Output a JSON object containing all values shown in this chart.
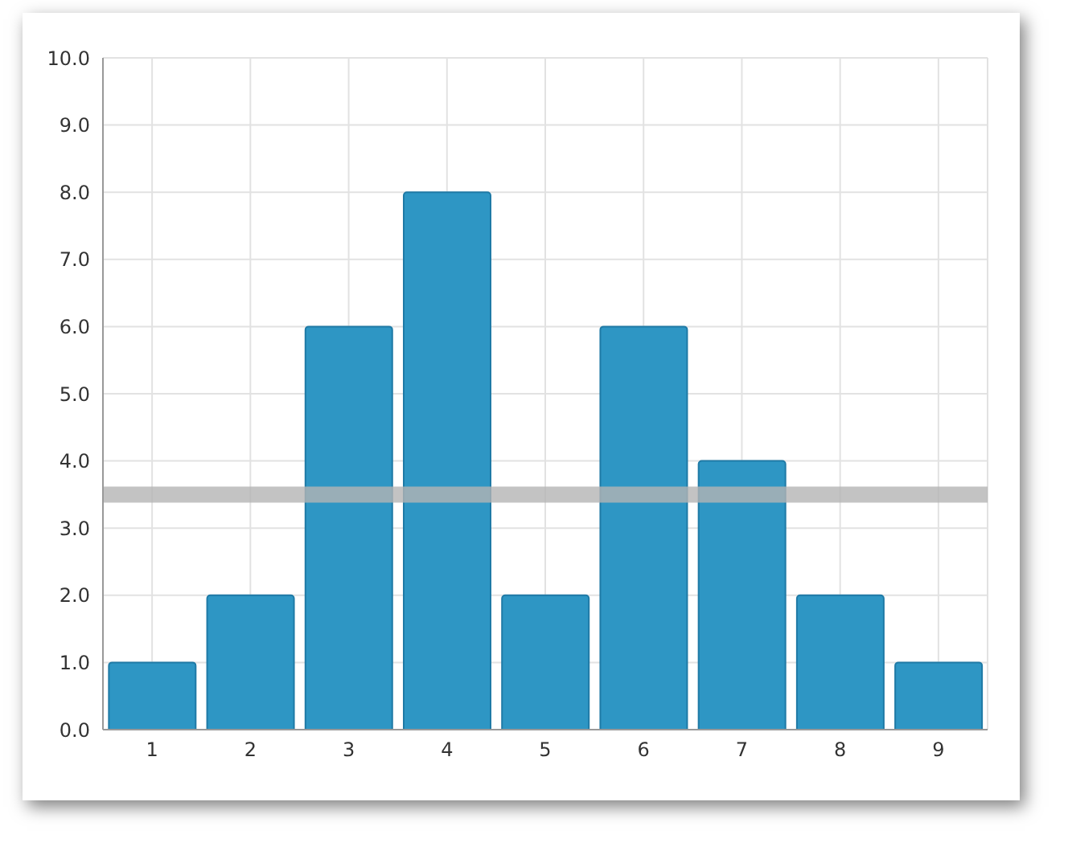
{
  "chart_data": {
    "type": "bar",
    "categories": [
      "1",
      "2",
      "3",
      "4",
      "5",
      "6",
      "7",
      "8",
      "9"
    ],
    "values": [
      1,
      2,
      6,
      8,
      2,
      6,
      4,
      2,
      1
    ],
    "color": "#2e96c4",
    "ylim": [
      0,
      10
    ],
    "yticks": [
      {
        "value": 0,
        "label": "0.0"
      },
      {
        "value": 1,
        "label": "1.0"
      },
      {
        "value": 2,
        "label": "2.0"
      },
      {
        "value": 3,
        "label": "3.0"
      },
      {
        "value": 4,
        "label": "4.0"
      },
      {
        "value": 5,
        "label": "5.0"
      },
      {
        "value": 6,
        "label": "6.0"
      },
      {
        "value": 7,
        "label": "7.0"
      },
      {
        "value": 8,
        "label": "8.0"
      },
      {
        "value": 9,
        "label": "9.0"
      },
      {
        "value": 10,
        "label": "10.0"
      }
    ],
    "ref_lines": [
      {
        "axis": "y",
        "value": 3.5,
        "color": "#b4b4b4"
      }
    ],
    "grid": true
  }
}
